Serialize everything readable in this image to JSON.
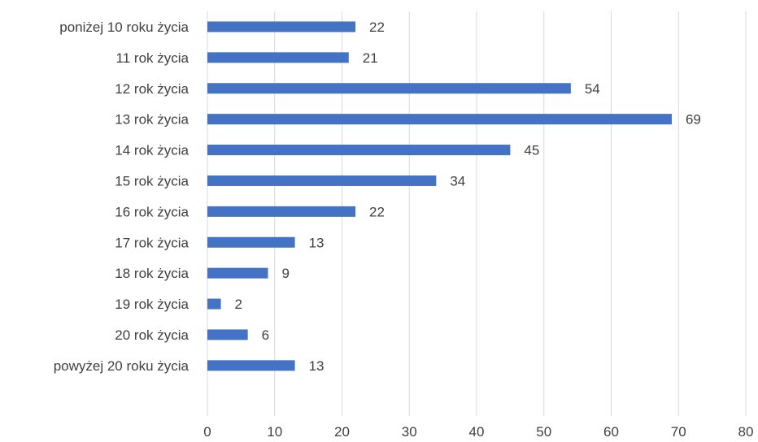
{
  "chart_data": {
    "type": "bar",
    "orientation": "horizontal",
    "title": "",
    "xlabel": "",
    "ylabel": "",
    "categories": [
      "poniżej 10 roku życia",
      "11 rok życia",
      "12 rok życia",
      "13 rok życia",
      "14 rok życia",
      "15 rok życia",
      "16 rok życia",
      "17 rok życia",
      "18 rok życia",
      "19 rok życia",
      "20 rok życia",
      "powyżej 20 roku życia"
    ],
    "values": [
      22,
      21,
      54,
      69,
      45,
      34,
      22,
      13,
      9,
      2,
      6,
      13
    ],
    "xlim": [
      0,
      80
    ],
    "xticks": [
      0,
      10,
      20,
      30,
      40,
      50,
      60,
      70,
      80
    ],
    "grid": "vertical",
    "legend": "none",
    "bar_color": "#4472C4",
    "data_labels": true
  }
}
